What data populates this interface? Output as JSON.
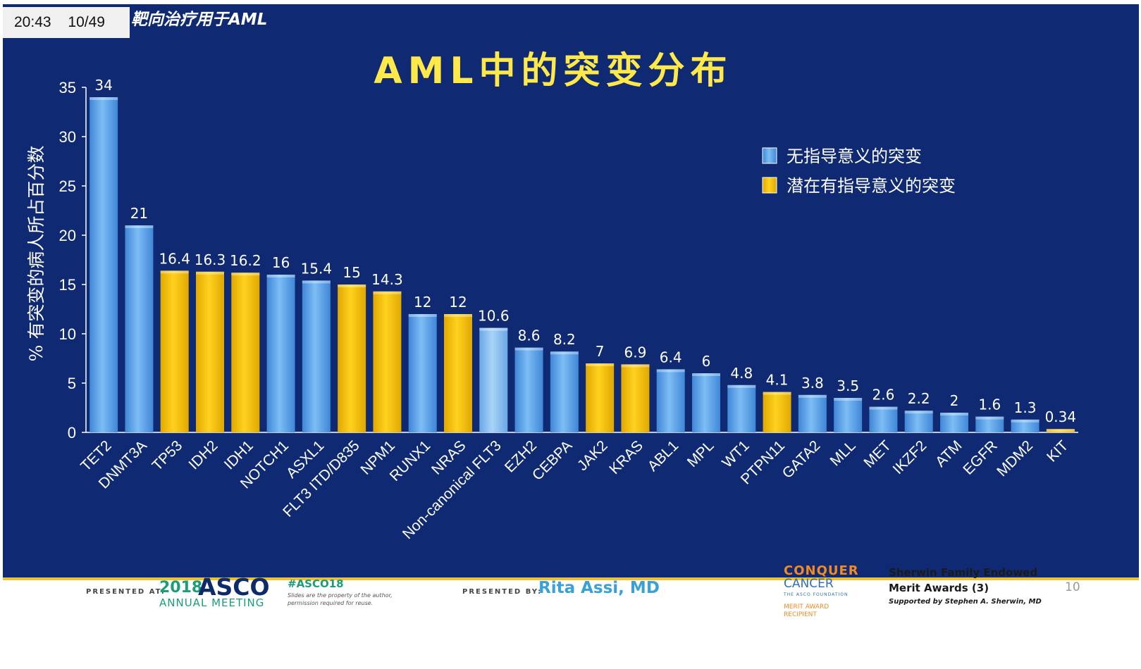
{
  "overlay": {
    "time": "20:43",
    "page": "10/49"
  },
  "slide": {
    "subtitle": "靶向治疗用于AML",
    "page_number": "10"
  },
  "chart_data": {
    "type": "bar",
    "title": "AML中的突变分布",
    "ylabel": "% 有突变的病人所占百分数",
    "xlabel": "",
    "ylim": [
      0,
      35
    ],
    "yticks": [
      0,
      5,
      10,
      15,
      20,
      25,
      30,
      35
    ],
    "grid": false,
    "legend_position": "top-right",
    "series_colors": {
      "non_actionable": "#5ea7ec",
      "potentially_actionable": "#f5c400",
      "highlight": "#8cc2f2"
    },
    "legend": [
      {
        "key": "non_actionable",
        "label": "无指导意义的突变"
      },
      {
        "key": "potentially_actionable",
        "label": "潜在有指导意义的突变"
      }
    ],
    "categories": [
      "TET2",
      "DNMT3A",
      "TP53",
      "IDH2",
      "IDH1",
      "NOTCH1",
      "ASXL1",
      "FLT3 ITD/D835",
      "NPM1",
      "RUNX1",
      "NRAS",
      "Non-canonical FLT3",
      "EZH2",
      "CEBPA",
      "JAK2",
      "KRAS",
      "ABL1",
      "MPL",
      "WT1",
      "PTPN11",
      "GATA2",
      "MLL",
      "MET",
      "IKZF2",
      "ATM",
      "EGFR",
      "MDM2",
      "KIT"
    ],
    "values": [
      34,
      21,
      16.4,
      16.3,
      16.2,
      16,
      15.4,
      15,
      14.3,
      12,
      12,
      10.6,
      8.6,
      8.2,
      7,
      6.9,
      6.4,
      6,
      4.8,
      4.1,
      3.8,
      3.5,
      2.6,
      2.2,
      2,
      1.6,
      1.3,
      0.34
    ],
    "value_labels": [
      "34",
      "21",
      "16.4",
      "16.3",
      "16.2",
      "16",
      "15.4",
      "15",
      "14.3",
      "12",
      "12",
      "10.6",
      "8.6",
      "8.2",
      "7",
      "6.9",
      "6.4",
      "6",
      "4.8",
      "4.1",
      "3.8",
      "3.5",
      "2.6",
      "2.2",
      "2",
      "1.6",
      "1.3",
      "0.34"
    ],
    "groups": [
      "non_actionable",
      "non_actionable",
      "potentially_actionable",
      "potentially_actionable",
      "potentially_actionable",
      "non_actionable",
      "non_actionable",
      "potentially_actionable",
      "potentially_actionable",
      "non_actionable",
      "potentially_actionable",
      "highlight",
      "non_actionable",
      "non_actionable",
      "potentially_actionable",
      "potentially_actionable",
      "non_actionable",
      "non_actionable",
      "non_actionable",
      "potentially_actionable",
      "non_actionable",
      "non_actionable",
      "non_actionable",
      "non_actionable",
      "non_actionable",
      "non_actionable",
      "non_actionable",
      "potentially_actionable"
    ]
  },
  "footer": {
    "presented_at_label": "PRESENTED AT:",
    "asco_year": "2018",
    "asco_name": "ASCO",
    "asco_meeting": "ANNUAL MEETING",
    "hashtag": "#ASCO18",
    "slides_note_1": "Slides are the property of the author,",
    "slides_note_2": "permission required for reuse.",
    "presented_by_label": "PRESENTED BY:",
    "presenter": "Rita Assi, MD",
    "conquer_1": "CONQUER",
    "conquer_2": "CANCER",
    "conquer_3": "THE ASCO FOUNDATION",
    "merit_1": "MERIT AWARD",
    "merit_2": "RECIPIENT",
    "award_1": "Sherwin Family Endowed",
    "award_2": "Merit Awards (3)",
    "award_3": "Supported by Stephen A. Sherwin, MD",
    "colors": {
      "asco_green": "#1b9e77",
      "asco_navy": "#0d2a6b",
      "conquer_orange": "#f08a24",
      "presenter_blue": "#3aa1d6"
    }
  }
}
